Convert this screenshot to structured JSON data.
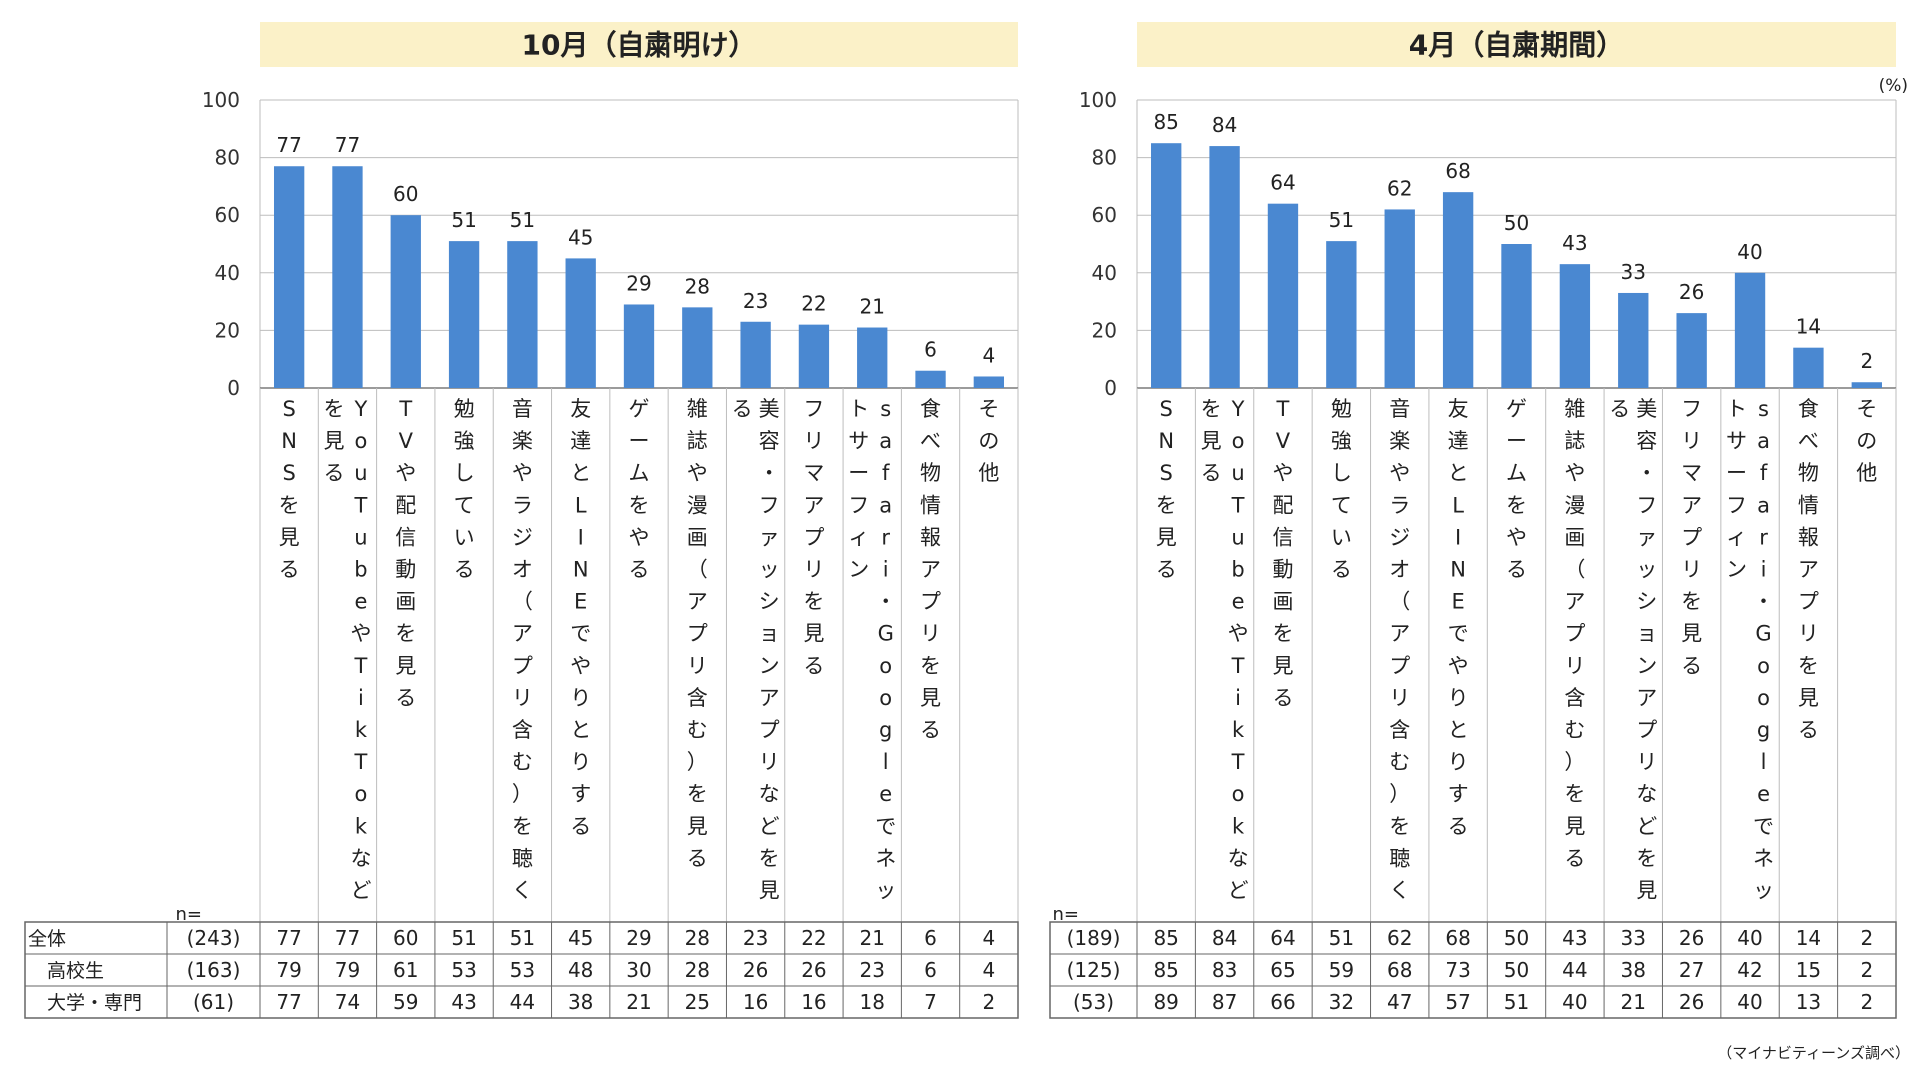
{
  "footnote": "（マイナビティーンズ調べ）",
  "chart_data": [
    {
      "type": "bar",
      "title": "10月（自粛明け）",
      "unit_label": "",
      "ylim": [
        0,
        100
      ],
      "yticks": [
        0,
        20,
        40,
        60,
        80,
        100
      ],
      "grid": true,
      "bar_color": "#4a88d1",
      "header_color": "#fbf1c8",
      "categories": [
        "SNSを見る",
        "YouTubeやTikTokなどを見る",
        "TVや配信動画を見る",
        "勉強している",
        "音楽やラジオ（アプリ含む）を聴く",
        "友達とLINEでやりとりする",
        "ゲームをやる",
        "雑誌や漫画（アプリ含む）を見る",
        "美容・ファッションアプリなどを見る",
        "フリマアプリを見る",
        "safari・Googleでネットサーフィン",
        "食べ物情報アプリを見る",
        "その他"
      ],
      "category_lines": [
        [
          "SNSを見る"
        ],
        [
          "YouTubeやTikTokなど",
          "を見る"
        ],
        [
          "TVや配信動画を見る"
        ],
        [
          "勉強している"
        ],
        [
          "音楽やラジオ（アプリ含む）を聴く"
        ],
        [
          "友達とLINEでやりとりする"
        ],
        [
          "ゲームをやる"
        ],
        [
          "雑誌や漫画（アプリ含む）を見る"
        ],
        [
          "美容・ファッションアプリなどを見",
          "る"
        ],
        [
          "フリマアプリを見る"
        ],
        [
          "safari・Googleでネッ",
          "トサーフィン"
        ],
        [
          "食べ物情報アプリを見る"
        ],
        [
          "その他"
        ]
      ],
      "values": [
        77,
        77,
        60,
        51,
        51,
        45,
        29,
        28,
        23,
        22,
        21,
        6,
        4
      ],
      "table": {
        "n_label": "n=",
        "rows": [
          {
            "label": "全体",
            "n": "(243)",
            "values": [
              77,
              77,
              60,
              51,
              51,
              45,
              29,
              28,
              23,
              22,
              21,
              6,
              4
            ]
          },
          {
            "label": "高校生",
            "n": "(163)",
            "values": [
              79,
              79,
              61,
              53,
              53,
              48,
              30,
              28,
              26,
              26,
              23,
              6,
              4
            ]
          },
          {
            "label": "大学・専門",
            "n": "(61)",
            "values": [
              77,
              74,
              59,
              43,
              44,
              38,
              21,
              25,
              16,
              16,
              18,
              7,
              2
            ]
          }
        ]
      }
    },
    {
      "type": "bar",
      "title": "4月（自粛期間）",
      "unit_label": "(%)",
      "ylim": [
        0,
        100
      ],
      "yticks": [
        0,
        20,
        40,
        60,
        80,
        100
      ],
      "grid": true,
      "bar_color": "#4a88d1",
      "header_color": "#fbf1c8",
      "categories": [
        "SNSを見る",
        "YouTubeやTikTokなどを見る",
        "TVや配信動画を見る",
        "勉強している",
        "音楽やラジオ（アプリ含む）を聴く",
        "友達とLINEでやりとりする",
        "ゲームをやる",
        "雑誌や漫画（アプリ含む）を見る",
        "美容・ファッションアプリなどを見る",
        "フリマアプリを見る",
        "safari・Googleでネットサーフィン",
        "食べ物情報アプリを見る",
        "その他"
      ],
      "category_lines": [
        [
          "SNSを見る"
        ],
        [
          "YouTubeやTikTokなど",
          "を見る"
        ],
        [
          "TVや配信動画を見る"
        ],
        [
          "勉強している"
        ],
        [
          "音楽やラジオ（アプリ含む）を聴く"
        ],
        [
          "友達とLINEでやりとりする"
        ],
        [
          "ゲームをやる"
        ],
        [
          "雑誌や漫画（アプリ含む）を見る"
        ],
        [
          "美容・ファッションアプリなどを見",
          "る"
        ],
        [
          "フリマアプリを見る"
        ],
        [
          "safari・Googleでネッ",
          "トサーフィン"
        ],
        [
          "食べ物情報アプリを見る"
        ],
        [
          "その他"
        ]
      ],
      "values": [
        85,
        84,
        64,
        51,
        62,
        68,
        50,
        43,
        33,
        26,
        40,
        14,
        2
      ],
      "table": {
        "n_label": "n=",
        "rows": [
          {
            "label": "",
            "n": "(189)",
            "values": [
              85,
              84,
              64,
              51,
              62,
              68,
              50,
              43,
              33,
              26,
              40,
              14,
              2
            ]
          },
          {
            "label": "",
            "n": "(125)",
            "values": [
              85,
              83,
              65,
              59,
              68,
              73,
              50,
              44,
              38,
              27,
              42,
              15,
              2
            ]
          },
          {
            "label": "",
            "n": "(53)",
            "values": [
              89,
              87,
              66,
              32,
              47,
              57,
              51,
              40,
              21,
              26,
              40,
              13,
              2
            ]
          }
        ]
      }
    }
  ]
}
